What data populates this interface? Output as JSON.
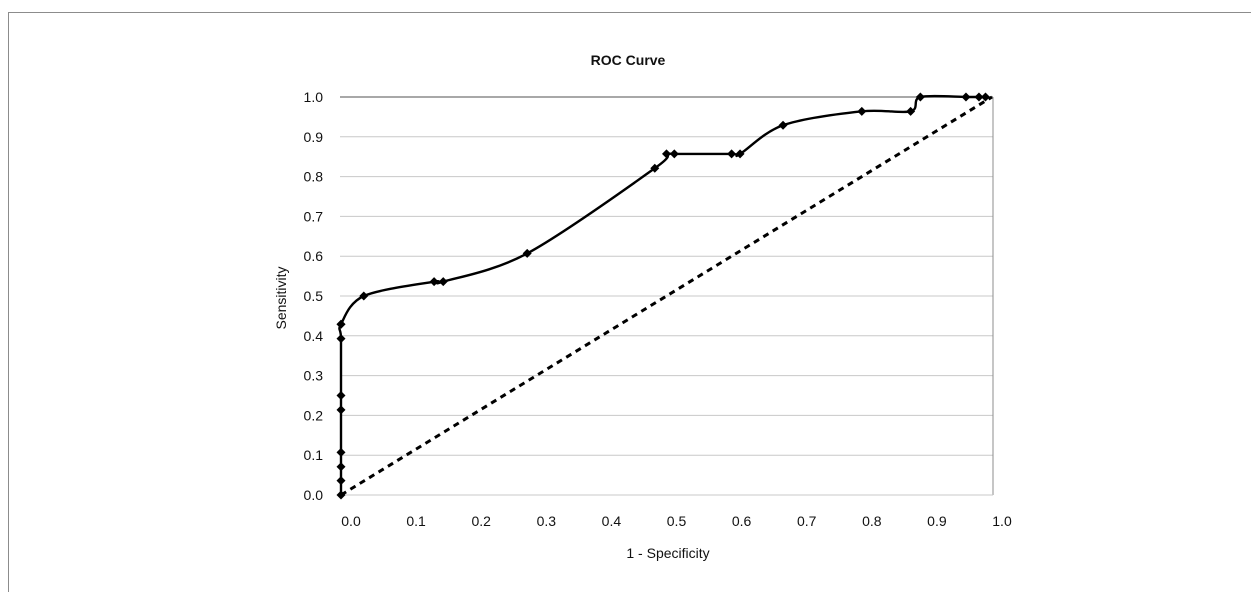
{
  "chart_data": {
    "type": "line",
    "title": "ROC Curve",
    "xlabel": "1 - Specificity",
    "ylabel": "Sensitivity",
    "xlim": [
      0.0,
      1.0
    ],
    "ylim": [
      0.0,
      1.0
    ],
    "x_ticks": [
      "0.0",
      "0.1",
      "0.2",
      "0.3",
      "0.4",
      "0.5",
      "0.6",
      "0.7",
      "0.8",
      "0.9",
      "1.0"
    ],
    "y_ticks": [
      "0.0",
      "0.1",
      "0.2",
      "0.3",
      "0.4",
      "0.5",
      "0.6",
      "0.7",
      "0.8",
      "0.9",
      "1.0"
    ],
    "grid": "horizontal",
    "legend": "none",
    "colors": {
      "curve": "#000000",
      "reference": "#000000",
      "grid": "#c8c8c8",
      "plot_border": "#8c8c8c"
    },
    "series": [
      {
        "style": "solid-with-diamond-markers",
        "x": [
          0.0,
          0.0,
          0.0,
          0.0,
          0.0,
          0.0,
          0.0,
          0.0,
          0.0,
          0.035,
          0.143,
          0.157,
          0.286,
          0.482,
          0.5,
          0.512,
          0.6,
          0.613,
          0.679,
          0.8,
          0.875,
          0.89,
          0.96,
          0.98,
          0.99
        ],
        "y": [
          0.0,
          0.036,
          0.071,
          0.107,
          0.214,
          0.25,
          0.393,
          0.429,
          0.429,
          0.5,
          0.536,
          0.536,
          0.607,
          0.821,
          0.857,
          0.857,
          0.857,
          0.857,
          0.929,
          0.964,
          0.964,
          1.0,
          1.0,
          1.0,
          1.0
        ]
      },
      {
        "style": "dashed-reference",
        "x": [
          0.0,
          1.0
        ],
        "y": [
          0.0,
          1.0
        ]
      }
    ]
  }
}
